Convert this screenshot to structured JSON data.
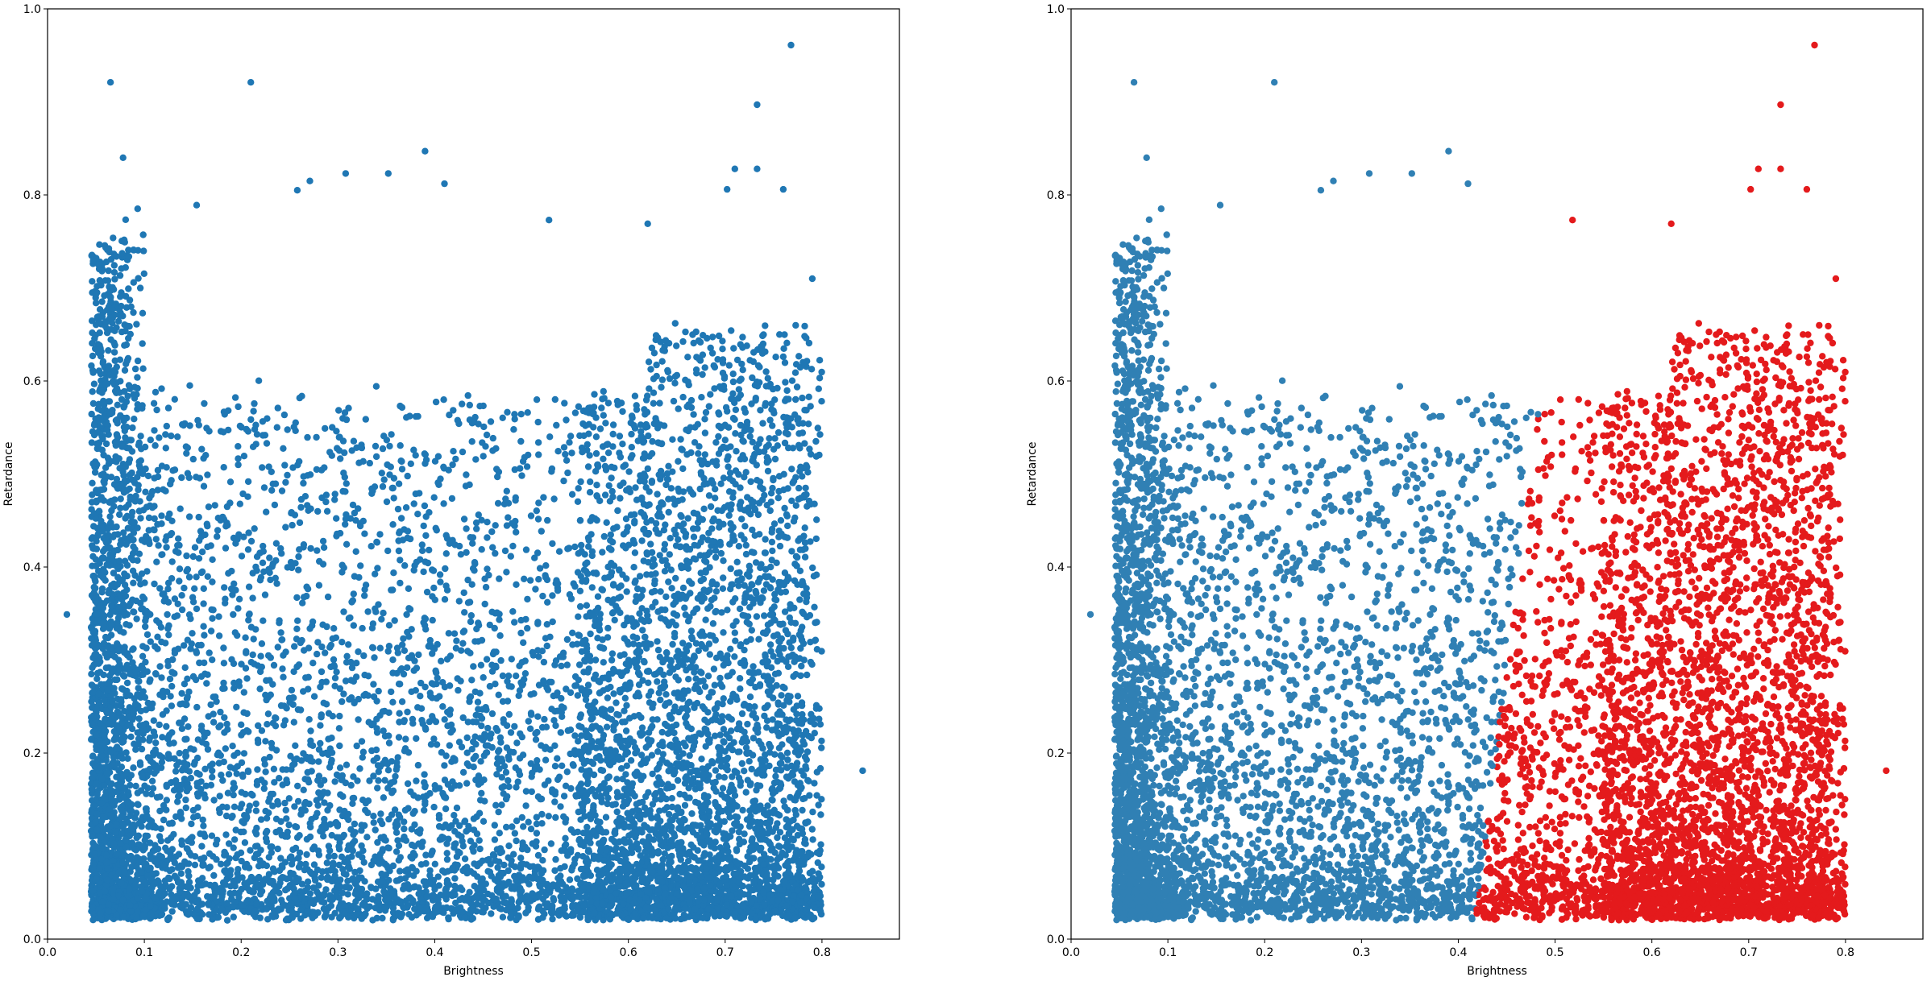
{
  "chart_data": [
    {
      "type": "scatter",
      "xlabel": "Brightness",
      "ylabel": "Retardance",
      "xlim": [
        0.0,
        0.88
      ],
      "ylim": [
        0.0,
        1.0
      ],
      "xticks": [
        "0.0",
        "0.1",
        "0.2",
        "0.3",
        "0.4",
        "0.5",
        "0.6",
        "0.7",
        "0.8"
      ],
      "yticks": [
        "0.0",
        "0.2",
        "0.4",
        "0.6",
        "0.8",
        "1.0"
      ],
      "grid": false,
      "marker_color": "#1f77b4",
      "series": [
        {
          "color": "#1f77b4",
          "points": [
            [
              0.065,
              0.921
            ],
            [
              0.21,
              0.921
            ],
            [
              0.768,
              0.961
            ],
            [
              0.733,
              0.897
            ],
            [
              0.078,
              0.84
            ],
            [
              0.39,
              0.847
            ],
            [
              0.41,
              0.812
            ],
            [
              0.352,
              0.823
            ],
            [
              0.308,
              0.823
            ],
            [
              0.271,
              0.815
            ],
            [
              0.258,
              0.805
            ],
            [
              0.154,
              0.789
            ],
            [
              0.02,
              0.349
            ],
            [
              0.842,
              0.181
            ],
            [
              0.71,
              0.828
            ],
            [
              0.733,
              0.828
            ],
            [
              0.702,
              0.806
            ],
            [
              0.76,
              0.806
            ],
            [
              0.518,
              0.773
            ],
            [
              0.62,
              0.769
            ],
            [
              0.79,
              0.71
            ]
          ]
        }
      ]
    },
    {
      "type": "scatter",
      "xlabel": "Brightness",
      "ylabel": "Retardance",
      "xlim": [
        0.0,
        0.88
      ],
      "ylim": [
        0.0,
        1.0
      ],
      "xticks": [
        "0.0",
        "0.1",
        "0.2",
        "0.3",
        "0.4",
        "0.5",
        "0.6",
        "0.7",
        "0.8"
      ],
      "yticks": [
        "0.0",
        "0.2",
        "0.4",
        "0.6",
        "0.8",
        "1.0"
      ],
      "grid": false,
      "cluster_colors": [
        "#3080b4",
        "#e41a1c"
      ],
      "series": [
        {
          "color": "#3080b4",
          "points": [
            [
              0.065,
              0.921
            ],
            [
              0.21,
              0.921
            ],
            [
              0.078,
              0.84
            ],
            [
              0.39,
              0.847
            ],
            [
              0.41,
              0.812
            ],
            [
              0.352,
              0.823
            ],
            [
              0.308,
              0.823
            ],
            [
              0.271,
              0.815
            ],
            [
              0.258,
              0.805
            ],
            [
              0.154,
              0.789
            ],
            [
              0.02,
              0.349
            ]
          ]
        },
        {
          "color": "#e41a1c",
          "points": [
            [
              0.768,
              0.961
            ],
            [
              0.733,
              0.897
            ],
            [
              0.842,
              0.181
            ],
            [
              0.71,
              0.828
            ],
            [
              0.733,
              0.828
            ],
            [
              0.702,
              0.806
            ],
            [
              0.76,
              0.806
            ],
            [
              0.518,
              0.773
            ],
            [
              0.62,
              0.769
            ],
            [
              0.79,
              0.71
            ]
          ]
        }
      ]
    }
  ]
}
